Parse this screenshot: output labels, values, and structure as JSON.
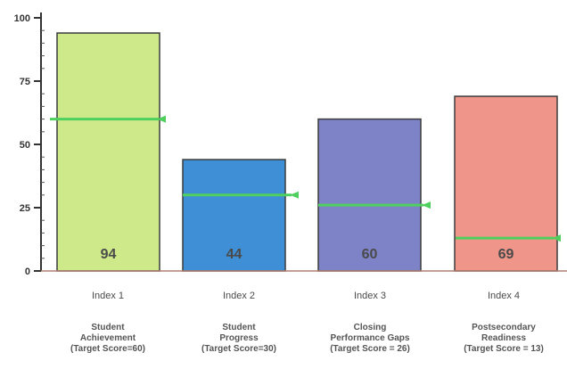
{
  "chart_data": {
    "type": "bar",
    "categories": [
      "Index 1",
      "Index 2",
      "Index 3",
      "Index 4"
    ],
    "descriptions": [
      [
        "Student",
        "Achievement",
        "(Target Score=60)"
      ],
      [
        "Student",
        "Progress",
        "(Target Score=30)"
      ],
      [
        "Closing",
        "Performance Gaps",
        "(Target Score = 26)"
      ],
      [
        "Postsecondary",
        "Readiness",
        "(Target Score = 13)"
      ]
    ],
    "values": [
      94,
      44,
      60,
      69
    ],
    "value_labels": [
      "94",
      "44",
      "60",
      "69"
    ],
    "targets": [
      60,
      30,
      26,
      13
    ],
    "bar_colors": [
      "#cde98a",
      "#3f8fd6",
      "#7e83c8",
      "#f0958a"
    ],
    "target_color": "#4fcf5e",
    "ylim": [
      0,
      100
    ],
    "yticks": [
      0,
      25,
      50,
      75,
      100
    ],
    "ytick_labels": [
      "0",
      "25",
      "50",
      "75",
      "100"
    ],
    "grid": false
  }
}
